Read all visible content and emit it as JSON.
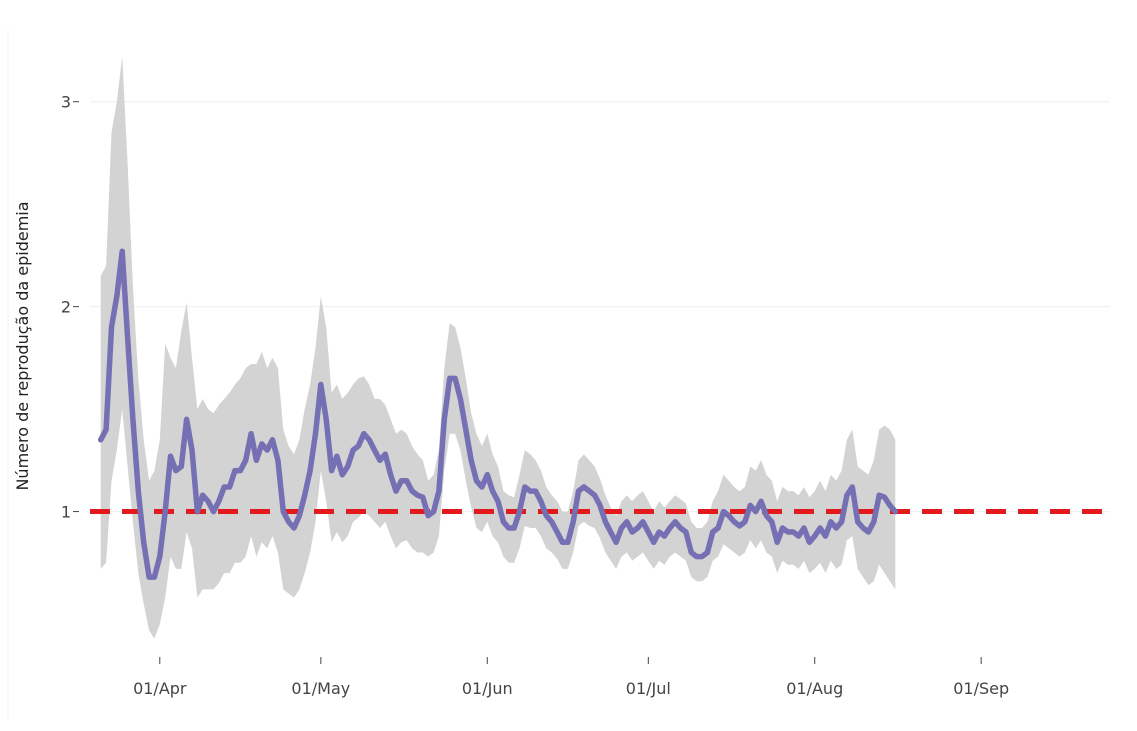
{
  "chart_data": {
    "type": "line",
    "title": "",
    "xlabel": "",
    "ylabel": "Número de reprodução da epidemia",
    "x_start": "2020-03-21",
    "x_range": [
      "2020-03-19",
      "2020-09-25"
    ],
    "ylim": [
      0.3,
      3.35
    ],
    "yticks": [
      {
        "value": 1,
        "label": "1"
      },
      {
        "value": 2,
        "label": "2"
      },
      {
        "value": 3,
        "label": "3"
      }
    ],
    "xticks": [
      {
        "date": "2020-04-01",
        "label": "01/Apr"
      },
      {
        "date": "2020-05-01",
        "label": "01/May"
      },
      {
        "date": "2020-06-01",
        "label": "01/Jun"
      },
      {
        "date": "2020-07-01",
        "label": "01/Jul"
      },
      {
        "date": "2020-08-01",
        "label": "01/Aug"
      },
      {
        "date": "2020-09-01",
        "label": "01/Sep"
      }
    ],
    "grid": "horizontal",
    "reference_line": {
      "value": 1,
      "color": "#e31a1c",
      "style": "dashed"
    },
    "colors": {
      "line": "#7570b3",
      "band": "#d3d3d3",
      "grid": "#f0f0f0"
    },
    "series": [
      {
        "role": "estimate",
        "values": [
          1.35,
          1.4,
          1.9,
          2.05,
          2.27,
          1.85,
          1.45,
          1.1,
          0.85,
          0.68,
          0.68,
          0.78,
          1.0,
          1.27,
          1.2,
          1.22,
          1.45,
          1.3,
          1.0,
          1.08,
          1.05,
          1.0,
          1.05,
          1.12,
          1.12,
          1.2,
          1.2,
          1.25,
          1.38,
          1.25,
          1.33,
          1.3,
          1.35,
          1.25,
          1.0,
          0.95,
          0.92,
          0.98,
          1.08,
          1.2,
          1.38,
          1.62,
          1.45,
          1.2,
          1.27,
          1.18,
          1.22,
          1.3,
          1.32,
          1.38,
          1.35,
          1.3,
          1.25,
          1.28,
          1.18,
          1.1,
          1.15,
          1.15,
          1.1,
          1.08,
          1.07,
          0.98,
          1.0,
          1.1,
          1.45,
          1.65,
          1.65,
          1.55,
          1.4,
          1.25,
          1.15,
          1.12,
          1.18,
          1.1,
          1.05,
          0.95,
          0.92,
          0.92,
          1.0,
          1.12,
          1.1,
          1.1,
          1.05,
          0.98,
          0.95,
          0.9,
          0.85,
          0.85,
          0.95,
          1.1,
          1.12,
          1.1,
          1.08,
          1.03,
          0.95,
          0.9,
          0.85,
          0.92,
          0.95,
          0.9,
          0.92,
          0.95,
          0.9,
          0.85,
          0.9,
          0.88,
          0.92,
          0.95,
          0.92,
          0.9,
          0.8,
          0.78,
          0.78,
          0.8,
          0.9,
          0.92,
          1.0,
          0.98,
          0.95,
          0.93,
          0.95,
          1.03,
          1.0,
          1.05,
          0.98,
          0.95,
          0.85,
          0.92,
          0.9,
          0.9,
          0.88,
          0.92,
          0.85,
          0.88,
          0.92,
          0.88,
          0.95,
          0.92,
          0.95,
          1.08,
          1.12,
          0.95,
          0.92,
          0.9,
          0.95,
          1.08,
          1.07,
          1.03,
          1.0
        ]
      },
      {
        "role": "upper",
        "values": [
          2.15,
          2.2,
          2.85,
          3.0,
          3.22,
          2.7,
          2.1,
          1.65,
          1.35,
          1.15,
          1.2,
          1.35,
          1.82,
          1.75,
          1.7,
          1.88,
          2.02,
          1.75,
          1.5,
          1.55,
          1.5,
          1.48,
          1.52,
          1.55,
          1.58,
          1.62,
          1.65,
          1.7,
          1.72,
          1.72,
          1.78,
          1.7,
          1.75,
          1.7,
          1.4,
          1.32,
          1.28,
          1.35,
          1.5,
          1.62,
          1.8,
          2.05,
          1.9,
          1.58,
          1.62,
          1.55,
          1.58,
          1.62,
          1.65,
          1.66,
          1.62,
          1.55,
          1.55,
          1.52,
          1.45,
          1.38,
          1.4,
          1.38,
          1.32,
          1.28,
          1.25,
          1.15,
          1.18,
          1.3,
          1.7,
          1.92,
          1.9,
          1.8,
          1.65,
          1.48,
          1.38,
          1.32,
          1.38,
          1.28,
          1.22,
          1.1,
          1.08,
          1.07,
          1.18,
          1.3,
          1.28,
          1.25,
          1.2,
          1.12,
          1.08,
          1.05,
          1.0,
          1.0,
          1.1,
          1.25,
          1.28,
          1.25,
          1.22,
          1.16,
          1.08,
          1.02,
          0.98,
          1.05,
          1.08,
          1.05,
          1.08,
          1.1,
          1.05,
          1.0,
          1.05,
          1.02,
          1.05,
          1.08,
          1.06,
          1.04,
          0.95,
          0.92,
          0.92,
          0.95,
          1.05,
          1.1,
          1.18,
          1.15,
          1.12,
          1.1,
          1.12,
          1.22,
          1.2,
          1.25,
          1.18,
          1.15,
          1.05,
          1.12,
          1.1,
          1.1,
          1.08,
          1.12,
          1.07,
          1.1,
          1.15,
          1.1,
          1.18,
          1.15,
          1.2,
          1.35,
          1.4,
          1.22,
          1.2,
          1.18,
          1.25,
          1.4,
          1.42,
          1.4,
          1.35
        ]
      },
      {
        "role": "lower",
        "values": [
          0.72,
          0.75,
          1.15,
          1.3,
          1.5,
          1.22,
          0.95,
          0.7,
          0.55,
          0.42,
          0.38,
          0.45,
          0.58,
          0.78,
          0.72,
          0.72,
          0.9,
          0.82,
          0.58,
          0.62,
          0.62,
          0.62,
          0.65,
          0.7,
          0.7,
          0.75,
          0.75,
          0.78,
          0.88,
          0.78,
          0.85,
          0.82,
          0.88,
          0.8,
          0.62,
          0.6,
          0.58,
          0.62,
          0.7,
          0.8,
          0.95,
          1.2,
          1.05,
          0.85,
          0.9,
          0.85,
          0.88,
          0.95,
          0.97,
          1.0,
          0.98,
          0.95,
          0.92,
          0.95,
          0.88,
          0.82,
          0.85,
          0.86,
          0.82,
          0.8,
          0.8,
          0.78,
          0.8,
          0.88,
          1.2,
          1.38,
          1.38,
          1.3,
          1.15,
          1.02,
          0.92,
          0.9,
          0.95,
          0.88,
          0.85,
          0.78,
          0.75,
          0.75,
          0.82,
          0.93,
          0.92,
          0.92,
          0.88,
          0.82,
          0.8,
          0.77,
          0.72,
          0.72,
          0.8,
          0.93,
          0.95,
          0.93,
          0.92,
          0.87,
          0.8,
          0.76,
          0.72,
          0.78,
          0.8,
          0.76,
          0.78,
          0.8,
          0.76,
          0.72,
          0.76,
          0.74,
          0.78,
          0.8,
          0.78,
          0.76,
          0.68,
          0.66,
          0.66,
          0.68,
          0.76,
          0.78,
          0.84,
          0.82,
          0.8,
          0.78,
          0.8,
          0.86,
          0.82,
          0.86,
          0.8,
          0.78,
          0.7,
          0.76,
          0.74,
          0.74,
          0.72,
          0.76,
          0.7,
          0.72,
          0.75,
          0.7,
          0.76,
          0.72,
          0.74,
          0.86,
          0.88,
          0.72,
          0.68,
          0.64,
          0.66,
          0.74,
          0.7,
          0.66,
          0.62
        ]
      }
    ]
  }
}
